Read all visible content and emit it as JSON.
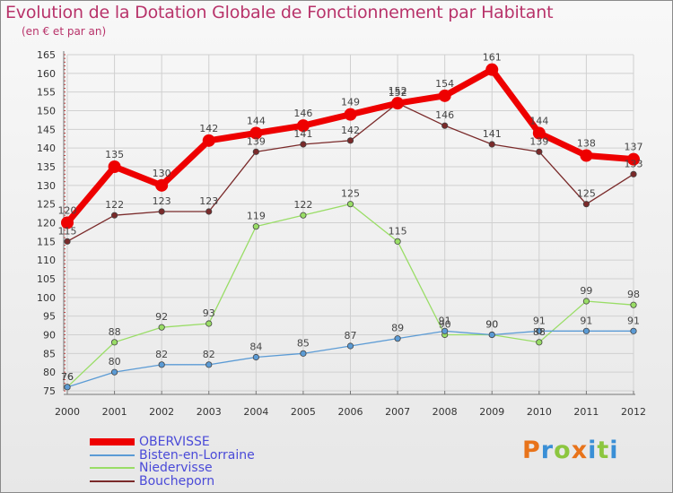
{
  "header": {
    "title": "Evolution de la Dotation Globale de Fonctionnement par Habitant",
    "subtitle": "(en € et par an)"
  },
  "brand": {
    "letters": [
      "P",
      "r",
      "o",
      "x",
      "i",
      "t",
      "i"
    ],
    "colors": [
      "#e8731a",
      "#3a8fd6",
      "#8cc63f",
      "#e8731a",
      "#3a8fd6",
      "#8cc63f",
      "#3a8fd6"
    ]
  },
  "chart_data": {
    "type": "line",
    "title": "Evolution de la Dotation Globale de Fonctionnement par Habitant",
    "subtitle": "(en € et par an)",
    "x": [
      "2000",
      "2001",
      "2002",
      "2003",
      "2004",
      "2005",
      "2006",
      "2007",
      "2008",
      "2009",
      "2010",
      "2011",
      "2012"
    ],
    "ylim": [
      75,
      165
    ],
    "yticks": [
      75,
      80,
      85,
      90,
      95,
      100,
      105,
      110,
      115,
      120,
      125,
      130,
      135,
      140,
      145,
      150,
      155,
      160,
      165
    ],
    "grid": true,
    "legend": "bottom-left",
    "series": [
      {
        "name": "OBERVISSE",
        "color": "#ee0000",
        "width": 7,
        "marker": 7,
        "values": [
          120,
          135,
          130,
          142,
          144,
          146,
          149,
          152,
          154,
          161,
          144,
          138,
          137
        ],
        "labels": [
          "120",
          "135",
          "130",
          "142",
          "144",
          "146",
          "149",
          "152",
          "154",
          "161",
          "144",
          "138",
          "137"
        ]
      },
      {
        "name": "Bisten-en-Lorraine",
        "color": "#5b9bd5",
        "width": 1.3,
        "marker": 3.2,
        "values": [
          76,
          80,
          82,
          82,
          84,
          85,
          87,
          89,
          91,
          90,
          91,
          91,
          91
        ],
        "labels": [
          "76",
          "80",
          "82",
          "82",
          "84",
          "85",
          "87",
          "89",
          "91",
          "90",
          "91",
          "91",
          "91"
        ]
      },
      {
        "name": "Niedervisse",
        "color": "#99dd66",
        "width": 1.3,
        "marker": 3.2,
        "values": [
          76,
          88,
          92,
          93,
          119,
          122,
          125,
          115,
          90,
          90,
          88,
          99,
          98
        ],
        "labels": [
          "76",
          "88",
          "92",
          "93",
          "119",
          "122",
          "125",
          "115",
          "90",
          "90",
          "88",
          "99",
          "98"
        ]
      },
      {
        "name": "Boucheporn",
        "color": "#7a2a2a",
        "width": 1.3,
        "marker": 3.2,
        "values": [
          115,
          122,
          123,
          123,
          139,
          141,
          142,
          152,
          146,
          141,
          139,
          125,
          133
        ],
        "labels": [
          "115",
          "122",
          "123",
          "123",
          "139",
          "141",
          "142",
          "152",
          "146",
          "141",
          "139",
          "125",
          "133"
        ]
      }
    ]
  }
}
